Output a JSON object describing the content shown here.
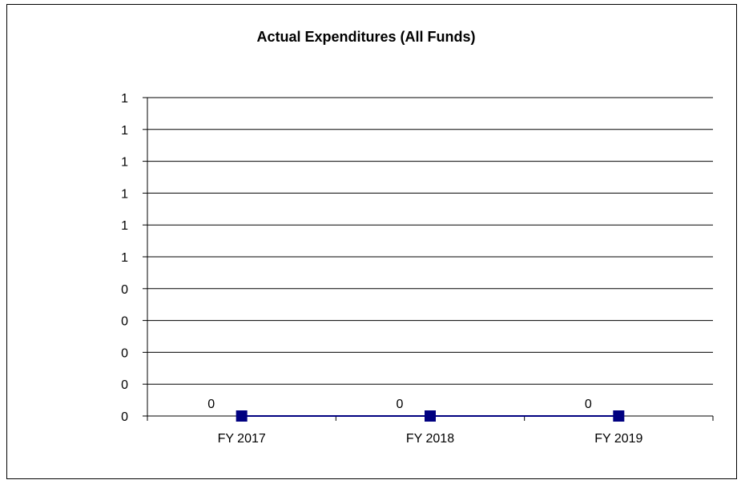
{
  "chart_data": {
    "type": "line",
    "title": "Actual Expenditures (All Funds)",
    "xlabel": "",
    "ylabel": "",
    "categories": [
      "FY 2017",
      "FY 2018",
      "FY 2019"
    ],
    "series": [
      {
        "values": [
          0,
          0,
          0
        ],
        "data_labels": [
          "0",
          "0",
          "0"
        ],
        "color": "#000080",
        "marker": "square"
      }
    ],
    "y_tick_labels": [
      "0",
      "0",
      "0",
      "0",
      "0",
      "1",
      "1",
      "1",
      "1",
      "1",
      "1"
    ],
    "ylim": [
      0,
      1
    ],
    "grid": true,
    "legend": "none"
  }
}
